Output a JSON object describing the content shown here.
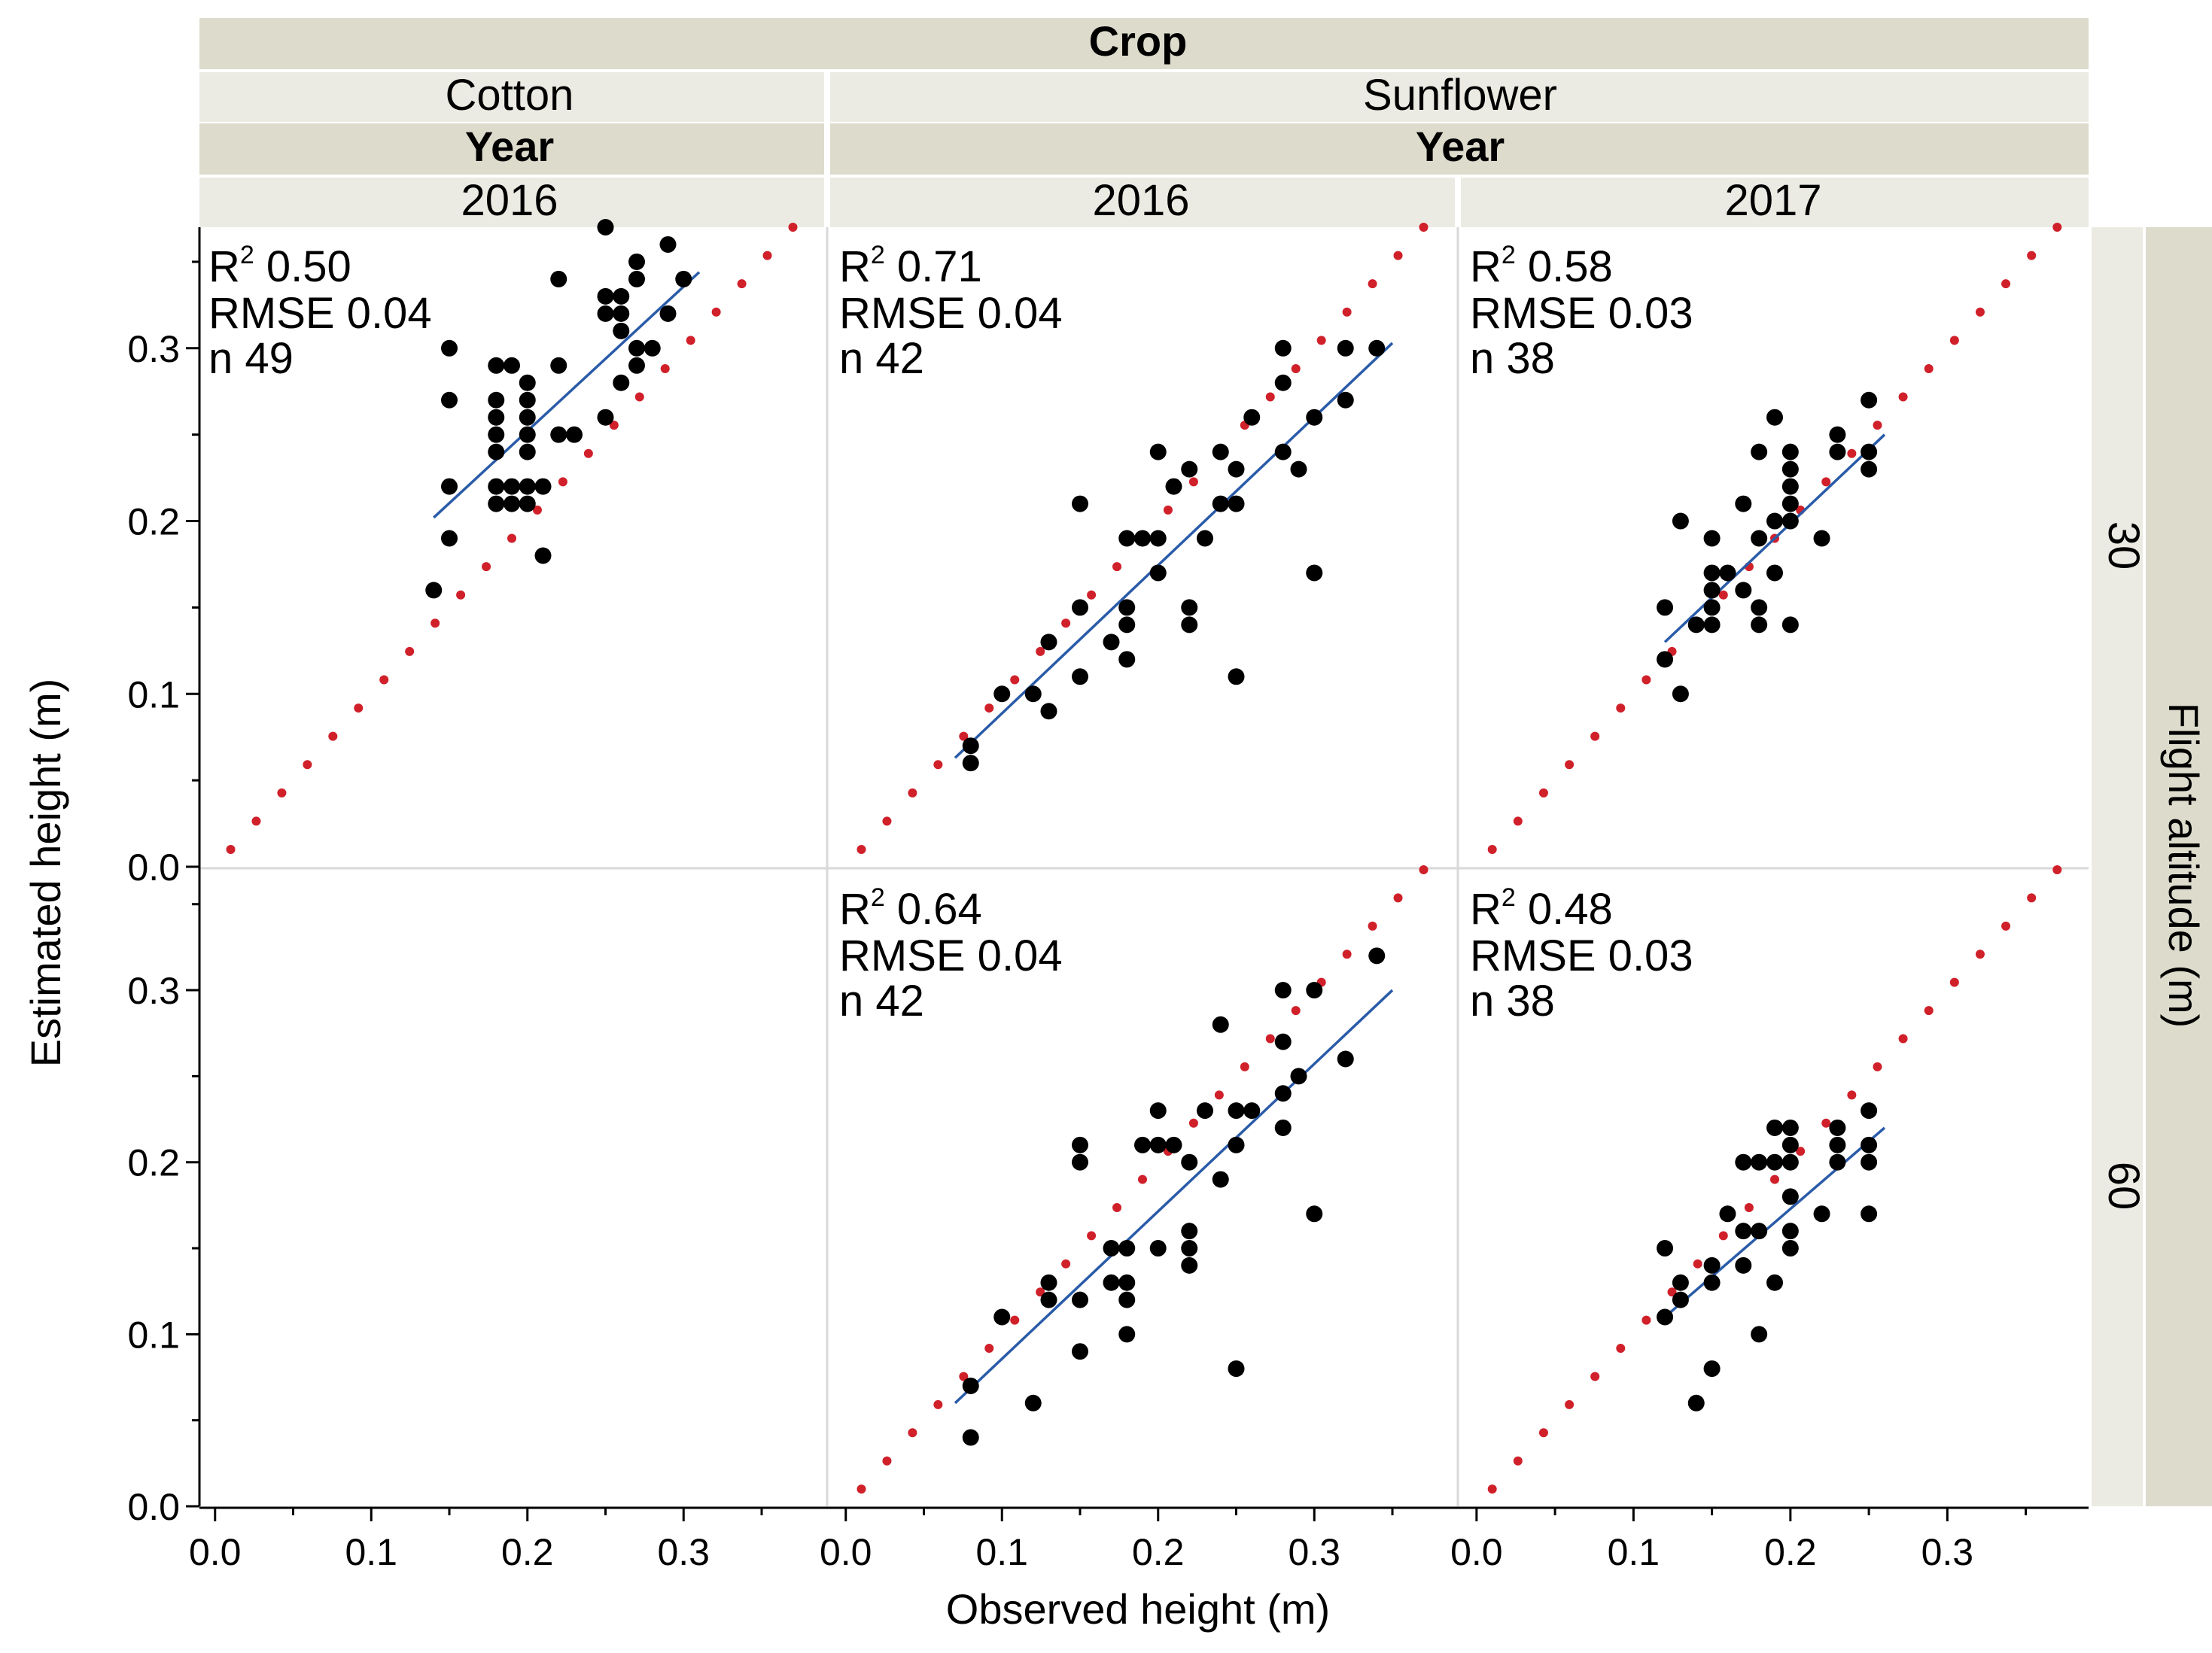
{
  "chart_data": {
    "type": "scatter",
    "facet_header": {
      "column_group_title": "Crop",
      "year_title": "Year",
      "crops": [
        "Cotton",
        "Sunflower"
      ],
      "row_group_title": "Flight altitude (m)"
    },
    "xlabel": "Observed height (m)",
    "ylabel": "Estimated height (m)",
    "xlim": [
      -0.01,
      0.39
    ],
    "ylim": [
      0.0,
      0.37
    ],
    "x_ticks": [
      "0.0",
      "0.1",
      "0.2",
      "0.3"
    ],
    "y_ticks": [
      "0.0",
      "0.1",
      "0.2",
      "0.3"
    ],
    "column_years": [
      "2016",
      "2016",
      "2017"
    ],
    "row_altitudes": [
      "30",
      "60"
    ],
    "reference_line": "1:1 (red dotted)",
    "panels": [
      {
        "crop": "Cotton",
        "year": "2016",
        "altitude": "30",
        "r2_label": "R",
        "r2_sup": "2",
        "r2": "0.50",
        "rmse_label": "RMSE",
        "rmse": "0.04",
        "n_label": "n",
        "n": "49",
        "fit": [
          [
            0.14,
            0.202
          ],
          [
            0.31,
            0.344
          ]
        ],
        "points": [
          [
            0.14,
            0.16
          ],
          [
            0.15,
            0.3
          ],
          [
            0.15,
            0.27
          ],
          [
            0.15,
            0.22
          ],
          [
            0.15,
            0.19
          ],
          [
            0.18,
            0.29
          ],
          [
            0.18,
            0.27
          ],
          [
            0.18,
            0.26
          ],
          [
            0.18,
            0.25
          ],
          [
            0.18,
            0.24
          ],
          [
            0.18,
            0.22
          ],
          [
            0.18,
            0.21
          ],
          [
            0.19,
            0.29
          ],
          [
            0.19,
            0.22
          ],
          [
            0.19,
            0.21
          ],
          [
            0.2,
            0.28
          ],
          [
            0.2,
            0.27
          ],
          [
            0.2,
            0.26
          ],
          [
            0.2,
            0.25
          ],
          [
            0.2,
            0.24
          ],
          [
            0.2,
            0.22
          ],
          [
            0.2,
            0.21
          ],
          [
            0.21,
            0.22
          ],
          [
            0.21,
            0.18
          ],
          [
            0.22,
            0.34
          ],
          [
            0.22,
            0.29
          ],
          [
            0.22,
            0.25
          ],
          [
            0.23,
            0.25
          ],
          [
            0.25,
            0.37
          ],
          [
            0.25,
            0.33
          ],
          [
            0.25,
            0.32
          ],
          [
            0.25,
            0.26
          ],
          [
            0.26,
            0.33
          ],
          [
            0.26,
            0.32
          ],
          [
            0.26,
            0.31
          ],
          [
            0.26,
            0.28
          ],
          [
            0.27,
            0.35
          ],
          [
            0.27,
            0.34
          ],
          [
            0.27,
            0.3
          ],
          [
            0.27,
            0.29
          ],
          [
            0.28,
            0.3
          ],
          [
            0.29,
            0.36
          ],
          [
            0.29,
            0.32
          ],
          [
            0.3,
            0.34
          ]
        ]
      },
      {
        "crop": "Sunflower",
        "year": "2016",
        "altitude": "30",
        "r2_label": "R",
        "r2_sup": "2",
        "r2": "0.71",
        "rmse_label": "RMSE",
        "rmse": "0.04",
        "n_label": "n",
        "n": "42",
        "fit": [
          [
            0.07,
            0.063
          ],
          [
            0.35,
            0.303
          ]
        ],
        "points": [
          [
            0.08,
            0.07
          ],
          [
            0.08,
            0.06
          ],
          [
            0.1,
            0.1
          ],
          [
            0.12,
            0.1
          ],
          [
            0.13,
            0.13
          ],
          [
            0.13,
            0.09
          ],
          [
            0.15,
            0.21
          ],
          [
            0.15,
            0.15
          ],
          [
            0.15,
            0.11
          ],
          [
            0.17,
            0.13
          ],
          [
            0.18,
            0.19
          ],
          [
            0.18,
            0.15
          ],
          [
            0.18,
            0.14
          ],
          [
            0.18,
            0.12
          ],
          [
            0.19,
            0.19
          ],
          [
            0.2,
            0.24
          ],
          [
            0.2,
            0.19
          ],
          [
            0.2,
            0.17
          ],
          [
            0.21,
            0.22
          ],
          [
            0.22,
            0.23
          ],
          [
            0.22,
            0.15
          ],
          [
            0.22,
            0.14
          ],
          [
            0.23,
            0.19
          ],
          [
            0.24,
            0.24
          ],
          [
            0.24,
            0.21
          ],
          [
            0.25,
            0.23
          ],
          [
            0.25,
            0.21
          ],
          [
            0.25,
            0.11
          ],
          [
            0.26,
            0.26
          ],
          [
            0.28,
            0.3
          ],
          [
            0.28,
            0.28
          ],
          [
            0.28,
            0.24
          ],
          [
            0.29,
            0.23
          ],
          [
            0.3,
            0.26
          ],
          [
            0.3,
            0.17
          ],
          [
            0.32,
            0.3
          ],
          [
            0.32,
            0.27
          ],
          [
            0.34,
            0.3
          ]
        ]
      },
      {
        "crop": "Sunflower",
        "year": "2017",
        "altitude": "30",
        "r2_label": "R",
        "r2_sup": "2",
        "r2": "0.58",
        "rmse_label": "RMSE",
        "rmse": "0.03",
        "n_label": "n",
        "n": "38",
        "fit": [
          [
            0.12,
            0.13
          ],
          [
            0.26,
            0.25
          ]
        ],
        "points": [
          [
            0.12,
            0.15
          ],
          [
            0.12,
            0.12
          ],
          [
            0.13,
            0.2
          ],
          [
            0.13,
            0.1
          ],
          [
            0.14,
            0.14
          ],
          [
            0.15,
            0.19
          ],
          [
            0.15,
            0.17
          ],
          [
            0.15,
            0.16
          ],
          [
            0.15,
            0.15
          ],
          [
            0.15,
            0.14
          ],
          [
            0.16,
            0.17
          ],
          [
            0.17,
            0.21
          ],
          [
            0.17,
            0.16
          ],
          [
            0.18,
            0.24
          ],
          [
            0.18,
            0.19
          ],
          [
            0.18,
            0.15
          ],
          [
            0.18,
            0.14
          ],
          [
            0.19,
            0.26
          ],
          [
            0.19,
            0.2
          ],
          [
            0.19,
            0.17
          ],
          [
            0.2,
            0.24
          ],
          [
            0.2,
            0.23
          ],
          [
            0.2,
            0.22
          ],
          [
            0.2,
            0.21
          ],
          [
            0.2,
            0.2
          ],
          [
            0.2,
            0.14
          ],
          [
            0.22,
            0.19
          ],
          [
            0.23,
            0.25
          ],
          [
            0.23,
            0.24
          ],
          [
            0.25,
            0.27
          ],
          [
            0.25,
            0.24
          ],
          [
            0.25,
            0.23
          ]
        ]
      },
      {
        "crop": "Sunflower",
        "year": "2016",
        "altitude": "60",
        "r2_label": "R",
        "r2_sup": "2",
        "r2": "0.64",
        "rmse_label": "RMSE",
        "rmse": "0.04",
        "n_label": "n",
        "n": "42",
        "fit": [
          [
            0.07,
            0.06
          ],
          [
            0.35,
            0.3
          ]
        ],
        "points": [
          [
            0.08,
            0.07
          ],
          [
            0.08,
            0.04
          ],
          [
            0.1,
            0.11
          ],
          [
            0.12,
            0.06
          ],
          [
            0.13,
            0.13
          ],
          [
            0.13,
            0.12
          ],
          [
            0.15,
            0.21
          ],
          [
            0.15,
            0.2
          ],
          [
            0.15,
            0.12
          ],
          [
            0.15,
            0.09
          ],
          [
            0.17,
            0.15
          ],
          [
            0.17,
            0.13
          ],
          [
            0.18,
            0.15
          ],
          [
            0.18,
            0.13
          ],
          [
            0.18,
            0.12
          ],
          [
            0.18,
            0.1
          ],
          [
            0.19,
            0.21
          ],
          [
            0.2,
            0.23
          ],
          [
            0.2,
            0.21
          ],
          [
            0.2,
            0.15
          ],
          [
            0.21,
            0.21
          ],
          [
            0.22,
            0.2
          ],
          [
            0.22,
            0.16
          ],
          [
            0.22,
            0.15
          ],
          [
            0.22,
            0.14
          ],
          [
            0.23,
            0.23
          ],
          [
            0.24,
            0.28
          ],
          [
            0.24,
            0.19
          ],
          [
            0.25,
            0.23
          ],
          [
            0.25,
            0.21
          ],
          [
            0.25,
            0.08
          ],
          [
            0.26,
            0.23
          ],
          [
            0.28,
            0.3
          ],
          [
            0.28,
            0.27
          ],
          [
            0.28,
            0.24
          ],
          [
            0.28,
            0.22
          ],
          [
            0.29,
            0.25
          ],
          [
            0.3,
            0.3
          ],
          [
            0.3,
            0.17
          ],
          [
            0.32,
            0.26
          ],
          [
            0.34,
            0.32
          ]
        ]
      },
      {
        "crop": "Sunflower",
        "year": "2017",
        "altitude": "60",
        "r2_label": "R",
        "r2_sup": "2",
        "r2": "0.48",
        "rmse_label": "RMSE",
        "rmse": "0.03",
        "n_label": "n",
        "n": "38",
        "fit": [
          [
            0.12,
            0.11
          ],
          [
            0.26,
            0.22
          ]
        ],
        "points": [
          [
            0.12,
            0.15
          ],
          [
            0.12,
            0.11
          ],
          [
            0.13,
            0.13
          ],
          [
            0.13,
            0.12
          ],
          [
            0.15,
            0.14
          ],
          [
            0.15,
            0.13
          ],
          [
            0.15,
            0.08
          ],
          [
            0.14,
            0.06
          ],
          [
            0.16,
            0.17
          ],
          [
            0.17,
            0.2
          ],
          [
            0.17,
            0.16
          ],
          [
            0.17,
            0.14
          ],
          [
            0.18,
            0.2
          ],
          [
            0.18,
            0.16
          ],
          [
            0.18,
            0.1
          ],
          [
            0.19,
            0.22
          ],
          [
            0.19,
            0.2
          ],
          [
            0.19,
            0.13
          ],
          [
            0.2,
            0.22
          ],
          [
            0.2,
            0.21
          ],
          [
            0.2,
            0.2
          ],
          [
            0.2,
            0.18
          ],
          [
            0.2,
            0.16
          ],
          [
            0.2,
            0.15
          ],
          [
            0.22,
            0.17
          ],
          [
            0.23,
            0.22
          ],
          [
            0.23,
            0.21
          ],
          [
            0.23,
            0.2
          ],
          [
            0.25,
            0.23
          ],
          [
            0.25,
            0.21
          ],
          [
            0.25,
            0.2
          ],
          [
            0.25,
            0.17
          ]
        ]
      }
    ]
  }
}
